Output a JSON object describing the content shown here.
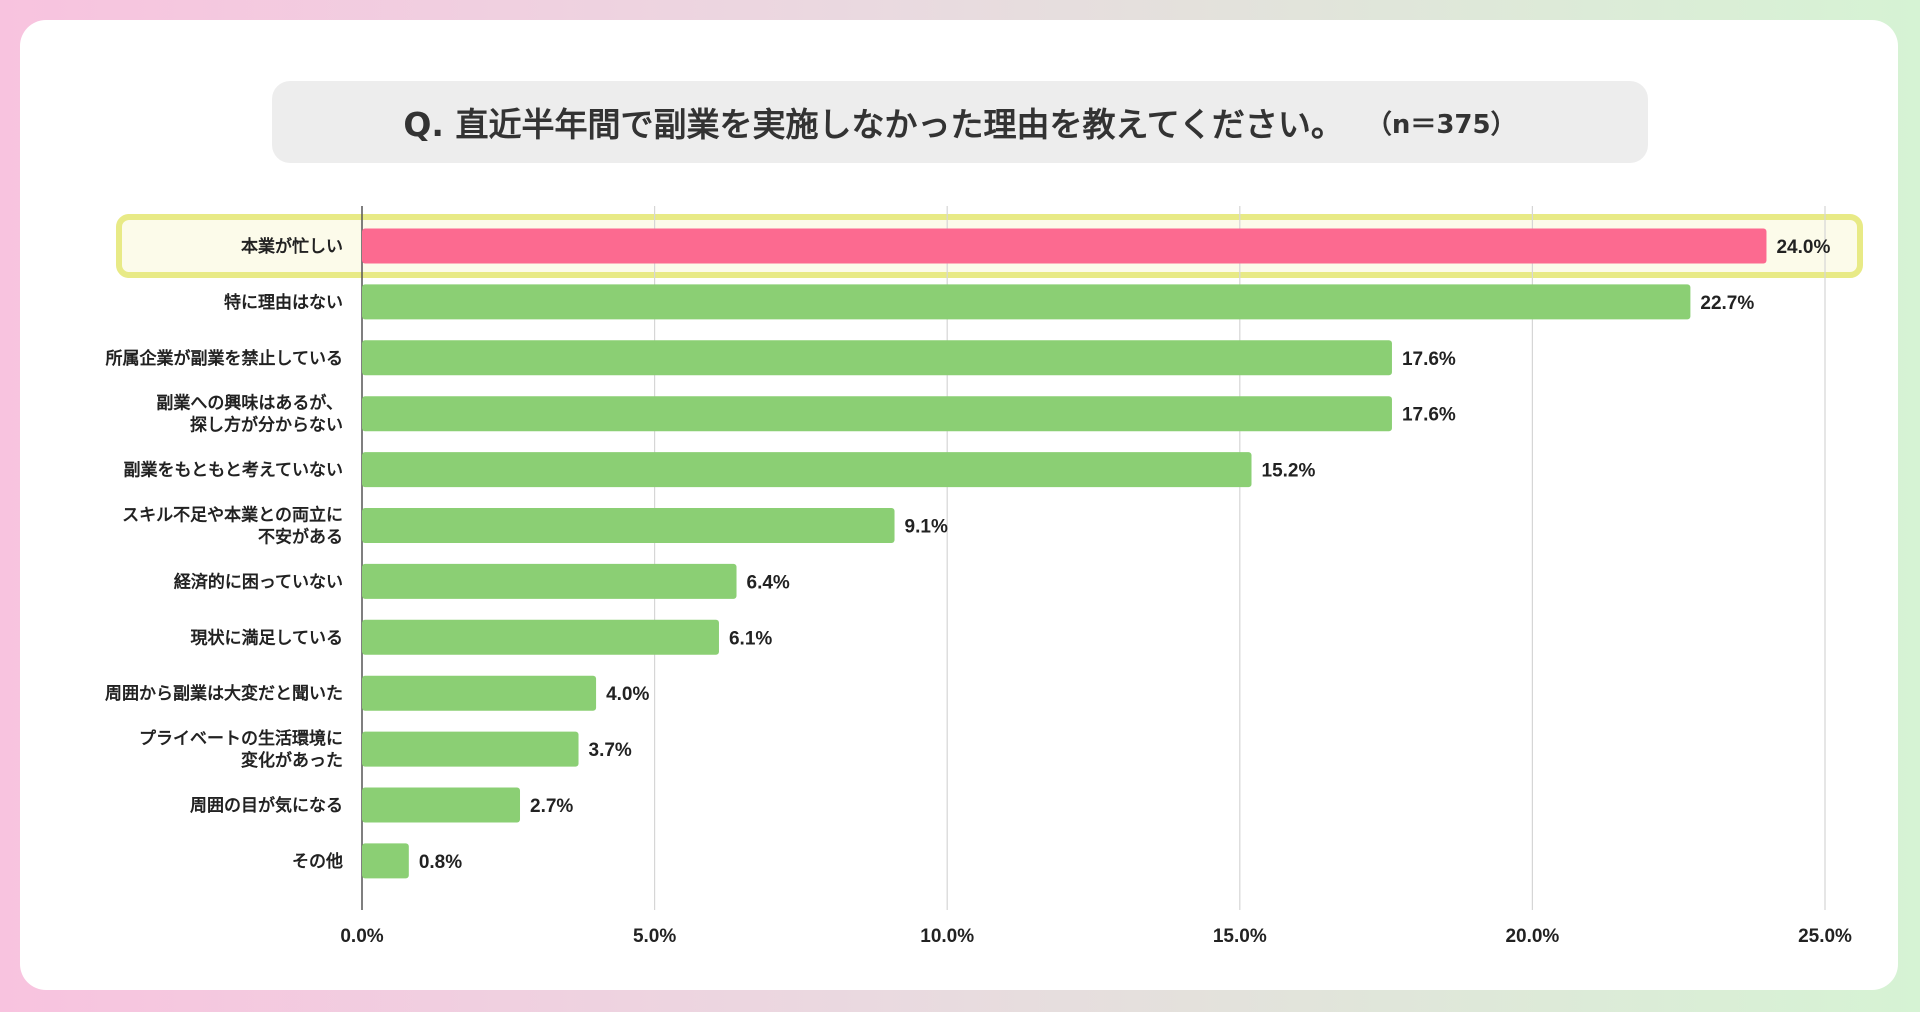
{
  "chart_data": {
    "type": "bar",
    "orientation": "horizontal",
    "title": "Q. 直近半年間で副業を実施しなかった理由を教えてください。",
    "subtitle": "（n＝375）",
    "categories": [
      [
        "本業が忙しい"
      ],
      [
        "特に理由はない"
      ],
      [
        "所属企業が副業を禁止している"
      ],
      [
        "副業への興味はあるが、",
        "探し方が分からない"
      ],
      [
        "副業をもともと考えていない"
      ],
      [
        "スキル不足や本業との両立に",
        "不安がある"
      ],
      [
        "経済的に困っていない"
      ],
      [
        "現状に満足している"
      ],
      [
        "周囲から副業は大変だと聞いた"
      ],
      [
        "プライベートの生活環境に",
        "変化があった"
      ],
      [
        "周囲の目が気になる"
      ],
      [
        "その他"
      ]
    ],
    "values": [
      24.0,
      22.7,
      17.6,
      17.6,
      15.2,
      9.1,
      6.4,
      6.1,
      4.0,
      3.7,
      2.7,
      0.8
    ],
    "value_labels": [
      "24.0%",
      "22.7%",
      "17.6%",
      "17.6%",
      "15.2%",
      "9.1%",
      "6.4%",
      "6.1%",
      "4.0%",
      "3.7%",
      "2.7%",
      "0.8%"
    ],
    "xlim": [
      0,
      25
    ],
    "x_ticks": [
      "0.0%",
      "5.0%",
      "10.0%",
      "15.0%",
      "20.0%",
      "25.0%"
    ],
    "grid": "vertical",
    "highlight_index": 0,
    "colors": {
      "highlight_bar": "#fc6a90",
      "bar": "#8bcf74",
      "highlight_box_border": "#e8ea86",
      "highlight_box_fill": "#fcfbea",
      "grid": "#d6d6d6",
      "axis": "#555555"
    }
  }
}
